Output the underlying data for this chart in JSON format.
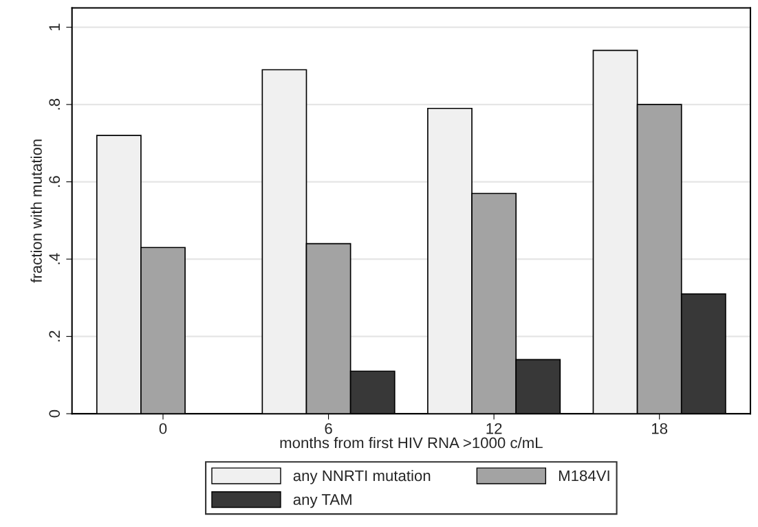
{
  "chart_data": {
    "type": "bar",
    "xlabel": "months from first HIV RNA >1000 c/mL",
    "ylabel": "fraction with mutation",
    "categories": [
      "0",
      "6",
      "12",
      "18"
    ],
    "series": [
      {
        "name": "any NNRTI mutation",
        "color": "#f0f0f0",
        "values": [
          0.72,
          0.89,
          0.79,
          0.94
        ]
      },
      {
        "name": "M184VI",
        "color": "#a3a3a3",
        "values": [
          0.43,
          0.44,
          0.57,
          0.8
        ]
      },
      {
        "name": "any TAM",
        "color": "#383838",
        "values": [
          null,
          0.11,
          0.14,
          0.31
        ]
      }
    ],
    "ylim": [
      0,
      1.05
    ],
    "yticks": [
      {
        "value": 0,
        "label": "0"
      },
      {
        "value": 0.2,
        "label": ".2"
      },
      {
        "value": 0.4,
        "label": ".4"
      },
      {
        "value": 0.6,
        "label": ".6"
      },
      {
        "value": 0.8,
        "label": ".8"
      },
      {
        "value": 1,
        "label": "1"
      }
    ],
    "grid": "y",
    "legend": "bottom"
  }
}
